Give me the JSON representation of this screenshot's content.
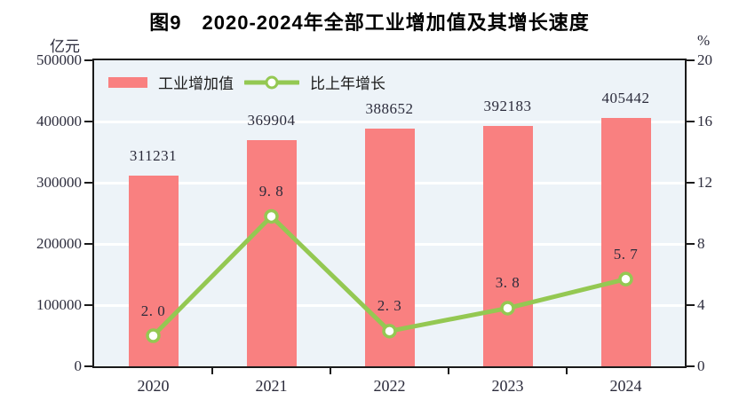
{
  "title": "图9　2020-2024年全部工业增加值及其增长速度",
  "legend": {
    "bar_label": "工业增加值",
    "line_label": "比上年增长"
  },
  "colors": {
    "bar": "#F98080",
    "line": "#94C852",
    "marker_fill": "#FFFFFF",
    "plot_background": "#EDF3F8",
    "gridline": "#FFFFFF",
    "axis": "#1A1A1A",
    "text": "#2B2B3B"
  },
  "chart_data": {
    "type": "bar+line",
    "categories": [
      "2020",
      "2021",
      "2022",
      "2023",
      "2024"
    ],
    "series": [
      {
        "name": "工业增加值",
        "type": "bar",
        "axis": "left",
        "values": [
          311231,
          369904,
          388652,
          392183,
          405442
        ],
        "point_labels": [
          "311231",
          "369904",
          "388652",
          "392183",
          "405442"
        ]
      },
      {
        "name": "比上年增长",
        "type": "line",
        "axis": "right",
        "values": [
          2.0,
          9.8,
          2.3,
          3.8,
          5.7
        ],
        "point_labels": [
          "2. 0",
          "9. 8",
          "2. 3",
          "3. 8",
          "5. 7"
        ]
      }
    ],
    "left_axis": {
      "title": "亿元",
      "range": [
        0,
        500000
      ],
      "tick_step": 100000,
      "tick_labels": [
        "0",
        "100000",
        "200000",
        "300000",
        "400000",
        "500000"
      ]
    },
    "right_axis": {
      "title": "%",
      "range": [
        0,
        20
      ],
      "tick_step": 4,
      "tick_labels": [
        "0",
        "4",
        "8",
        "12",
        "16",
        "20"
      ]
    },
    "grid": "horizontal-white-lines",
    "legend_position": "top-left-inside"
  }
}
